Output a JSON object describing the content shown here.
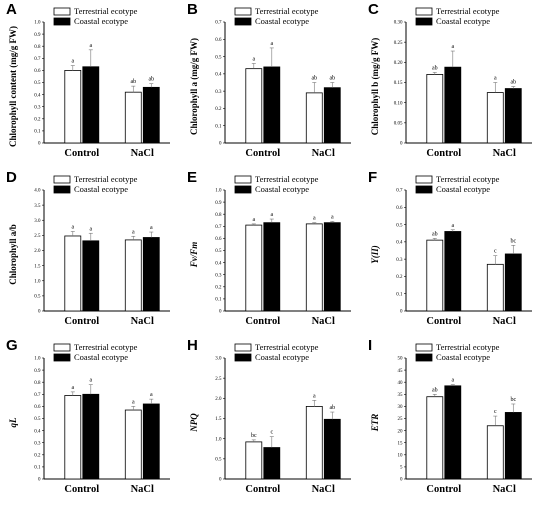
{
  "colors": {
    "terrestrial_fill": "#ffffff",
    "coastal_fill": "#000000",
    "axis": "#000000",
    "error_bar": "#777777"
  },
  "legend": {
    "terrestrial": "Terrestrial ecotype",
    "coastal": "Coastal ecotype"
  },
  "chart_data": [
    {
      "panel": "A",
      "type": "bar",
      "categories": [
        "Control",
        "NaCl"
      ],
      "ylabel": "Chlorophyll content (mg/g FW)",
      "ylabel_italic": false,
      "ylim": [
        0,
        1.0
      ],
      "yticks": [
        "0",
        "0.1",
        "0.2",
        "0.3",
        "0.4",
        "0.5",
        "0.6",
        "0.7",
        "0.8",
        "0.9",
        "1.0"
      ],
      "series": [
        {
          "name": "Terrestrial ecotype",
          "values": [
            0.6,
            0.42
          ],
          "errors": [
            0.04,
            0.05
          ],
          "letters": [
            "a",
            "ab"
          ]
        },
        {
          "name": "Coastal ecotype",
          "values": [
            0.63,
            0.46
          ],
          "errors": [
            0.14,
            0.03
          ],
          "letters": [
            "a",
            "ab"
          ]
        }
      ]
    },
    {
      "panel": "B",
      "type": "bar",
      "categories": [
        "Control",
        "NaCl"
      ],
      "ylabel": "Chlorophyll a  (mg/g FW)",
      "ylabel_italic": false,
      "ylim": [
        0,
        0.7
      ],
      "yticks": [
        "0",
        "0.1",
        "0.2",
        "0.3",
        "0.4",
        "0.5",
        "0.6",
        "0.7"
      ],
      "series": [
        {
          "name": "Terrestrial ecotype",
          "values": [
            0.43,
            0.29
          ],
          "errors": [
            0.03,
            0.06
          ],
          "letters": [
            "a",
            "ab"
          ]
        },
        {
          "name": "Coastal ecotype",
          "values": [
            0.44,
            0.32
          ],
          "errors": [
            0.11,
            0.03
          ],
          "letters": [
            "a",
            "ab"
          ]
        }
      ]
    },
    {
      "panel": "C",
      "type": "bar",
      "categories": [
        "Control",
        "NaCl"
      ],
      "ylabel": "Chlorophyll b  (mg/g FW)",
      "ylabel_italic": false,
      "ylim": [
        0,
        0.3
      ],
      "yticks": [
        "0",
        "0.05",
        "0.10",
        "0.15",
        "0.20",
        "0.25",
        "0.30"
      ],
      "series": [
        {
          "name": "Terrestrial ecotype",
          "values": [
            0.17,
            0.125
          ],
          "errors": [
            0.005,
            0.025
          ],
          "letters": [
            "ab",
            "a"
          ]
        },
        {
          "name": "Coastal ecotype",
          "values": [
            0.188,
            0.135
          ],
          "errors": [
            0.04,
            0.005
          ],
          "letters": [
            "a",
            "ab"
          ]
        }
      ]
    },
    {
      "panel": "D",
      "type": "bar",
      "categories": [
        "Control",
        "NaCl"
      ],
      "ylabel": "Chlorophyll a/b",
      "ylabel_italic": false,
      "ylim": [
        0,
        4.0
      ],
      "yticks": [
        "0",
        "0.5",
        "1.0",
        "1.5",
        "2.0",
        "2.5",
        "3.0",
        "3.5",
        "4.0"
      ],
      "series": [
        {
          "name": "Terrestrial ecotype",
          "values": [
            2.48,
            2.35
          ],
          "errors": [
            0.15,
            0.12
          ],
          "letters": [
            "a",
            "a"
          ]
        },
        {
          "name": "Coastal ecotype",
          "values": [
            2.32,
            2.43
          ],
          "errors": [
            0.25,
            0.18
          ],
          "letters": [
            "a",
            "a"
          ]
        }
      ]
    },
    {
      "panel": "E",
      "type": "bar",
      "categories": [
        "Control",
        "NaCl"
      ],
      "ylabel": "Fv/Fm",
      "ylabel_italic": true,
      "ylim": [
        0,
        1.0
      ],
      "yticks": [
        "0",
        "0.1",
        "0.2",
        "0.3",
        "0.4",
        "0.5",
        "0.6",
        "0.7",
        "0.8",
        "0.9",
        "1.0"
      ],
      "series": [
        {
          "name": "Terrestrial ecotype",
          "values": [
            0.71,
            0.72
          ],
          "errors": [
            0.01,
            0.01
          ],
          "letters": [
            "a",
            "a"
          ]
        },
        {
          "name": "Coastal ecotype",
          "values": [
            0.73,
            0.73
          ],
          "errors": [
            0.03,
            0.01
          ],
          "letters": [
            "a",
            "a"
          ]
        }
      ]
    },
    {
      "panel": "F",
      "type": "bar",
      "categories": [
        "Control",
        "NaCl"
      ],
      "ylabel": "Y(II)",
      "ylabel_italic": true,
      "ylim": [
        0,
        0.7
      ],
      "yticks": [
        "0",
        "0.1",
        "0.2",
        "0.3",
        "0.4",
        "0.5",
        "0.6",
        "0.7"
      ],
      "series": [
        {
          "name": "Terrestrial ecotype",
          "values": [
            0.41,
            0.27
          ],
          "errors": [
            0.01,
            0.05
          ],
          "letters": [
            "ab",
            "c"
          ]
        },
        {
          "name": "Coastal ecotype",
          "values": [
            0.46,
            0.33
          ],
          "errors": [
            0.01,
            0.05
          ],
          "letters": [
            "a",
            "bc"
          ]
        }
      ]
    },
    {
      "panel": "G",
      "type": "bar",
      "categories": [
        "Control",
        "NaCl"
      ],
      "ylabel": "qL",
      "ylabel_italic": true,
      "ylim": [
        0,
        1.0
      ],
      "yticks": [
        "0",
        "0.1",
        "0.2",
        "0.3",
        "0.4",
        "0.5",
        "0.6",
        "0.7",
        "0.8",
        "0.9",
        "1.0"
      ],
      "series": [
        {
          "name": "Terrestrial ecotype",
          "values": [
            0.69,
            0.57
          ],
          "errors": [
            0.03,
            0.03
          ],
          "letters": [
            "a",
            "a"
          ]
        },
        {
          "name": "Coastal ecotype",
          "values": [
            0.7,
            0.62
          ],
          "errors": [
            0.08,
            0.04
          ],
          "letters": [
            "a",
            "a"
          ]
        }
      ]
    },
    {
      "panel": "H",
      "type": "bar",
      "categories": [
        "Control",
        "NaCl"
      ],
      "ylabel": "NPQ",
      "ylabel_italic": true,
      "ylim": [
        0,
        3.0
      ],
      "yticks": [
        "0",
        "0.5",
        "1.0",
        "1.5",
        "2.0",
        "2.5",
        "3.0"
      ],
      "series": [
        {
          "name": "Terrestrial ecotype",
          "values": [
            0.92,
            1.8
          ],
          "errors": [
            0.05,
            0.15
          ],
          "letters": [
            "bc",
            "a"
          ]
        },
        {
          "name": "Coastal ecotype",
          "values": [
            0.78,
            1.48
          ],
          "errors": [
            0.27,
            0.18
          ],
          "letters": [
            "c",
            "ab"
          ]
        }
      ]
    },
    {
      "panel": "I",
      "type": "bar",
      "categories": [
        "Control",
        "NaCl"
      ],
      "ylabel": "ETR",
      "ylabel_italic": true,
      "ylim": [
        0,
        50
      ],
      "yticks": [
        "0",
        "5",
        "10",
        "15",
        "20",
        "25",
        "30",
        "35",
        "40",
        "45",
        "50"
      ],
      "series": [
        {
          "name": "Terrestrial ecotype",
          "values": [
            34,
            22
          ],
          "errors": [
            1,
            4
          ],
          "letters": [
            "ab",
            "c"
          ]
        },
        {
          "name": "Coastal ecotype",
          "values": [
            38.5,
            27.5
          ],
          "errors": [
            0.5,
            3.5
          ],
          "letters": [
            "a",
            "bc"
          ]
        }
      ]
    }
  ]
}
